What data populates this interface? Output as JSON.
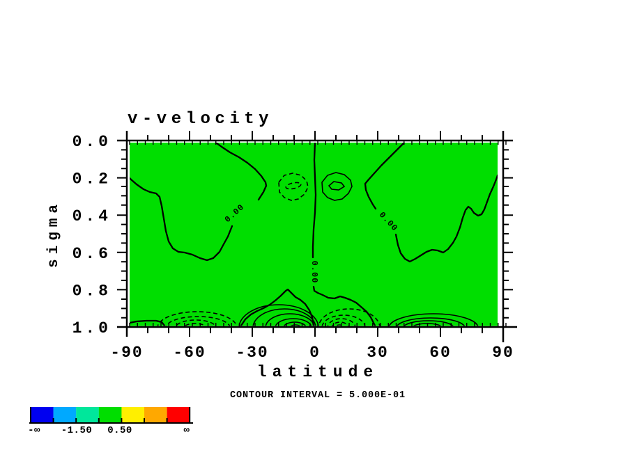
{
  "title": "v-velocity",
  "axes": {
    "x": {
      "label": "latitude",
      "ticks": [
        "-90",
        "-60",
        "-30",
        "0",
        "30",
        "60",
        "90"
      ]
    },
    "y": {
      "label": "sigma",
      "ticks": [
        "0.0",
        "0.2",
        "0.4",
        "0.6",
        "0.8",
        "1.0"
      ]
    }
  },
  "annotations": {
    "contour_interval": "CONTOUR INTERVAL = 5.000E-01",
    "zero_label": "0.00"
  },
  "colorbar": {
    "colors": [
      "#0000f0",
      "#00a9ff",
      "#00e79b",
      "#00de00",
      "#ffef00",
      "#ffa800",
      "#ff0000"
    ],
    "labels": [
      "-∞",
      "-1.50",
      "0.50",
      "∞"
    ]
  },
  "colors": {
    "background_fill": "#00de00",
    "line": "#000000"
  },
  "chart_data": {
    "type": "heatmap",
    "subtype": "filled-contour-latitude-sigma-section",
    "title": "v-velocity",
    "xlabel": "latitude",
    "ylabel": "sigma",
    "xlim": [
      -90,
      90
    ],
    "ylim_top_to_bottom": [
      0.0,
      1.0
    ],
    "contour_interval": 0.5,
    "contour_interval_label": "5.000E-01",
    "palette_boundaries_labeled": {
      "lightblue_springgreen": -1.5,
      "green_yellow": 0.5
    },
    "features": [
      {
        "name": "zero-contour-left-hook",
        "value": 0.0,
        "path_hint": "from top edge at lat -42 down to lat -23/sigma 0.24, looping down-left to low point lat -50/sigma 0.64, back up to left edge at sigma 0.19"
      },
      {
        "name": "zero-contour-equator",
        "value": 0.0,
        "path_hint": "near-vertical line at lat 0 from sigma 0 to sigma 0.82, then bending to bottom edge near lat 28"
      },
      {
        "name": "zero-contour-right-hook",
        "value": 0.0,
        "path_hint": "from top edge at lat 43 down to lat 24/sigma 0.23, down to low point lat 46/sigma 0.65, rising to right edge at sigma 0.19"
      },
      {
        "name": "negative-cell-upper",
        "center": {
          "lat": -10,
          "sigma": 0.25
        },
        "approx_min": -1.0
      },
      {
        "name": "positive-cell-upper",
        "center": {
          "lat": 10,
          "sigma": 0.25
        },
        "approx_max": 1.0
      },
      {
        "name": "negative-cell-south-bottom",
        "center": {
          "lat": -56,
          "sigma": 0.97
        },
        "approx_min": -2.5
      },
      {
        "name": "positive-cell-tropics-south-bottom",
        "center": {
          "lat": -12,
          "sigma": 0.97
        },
        "approx_max": 3.0
      },
      {
        "name": "negative-cell-tropics-north-bottom",
        "center": {
          "lat": 13,
          "sigma": 0.97
        },
        "approx_min": -3.0
      },
      {
        "name": "positive-cell-north-bottom",
        "center": {
          "lat": 55,
          "sigma": 0.97
        },
        "approx_max": 1.5
      }
    ],
    "legend_position": "bottom-left colorbar",
    "grid": false
  }
}
